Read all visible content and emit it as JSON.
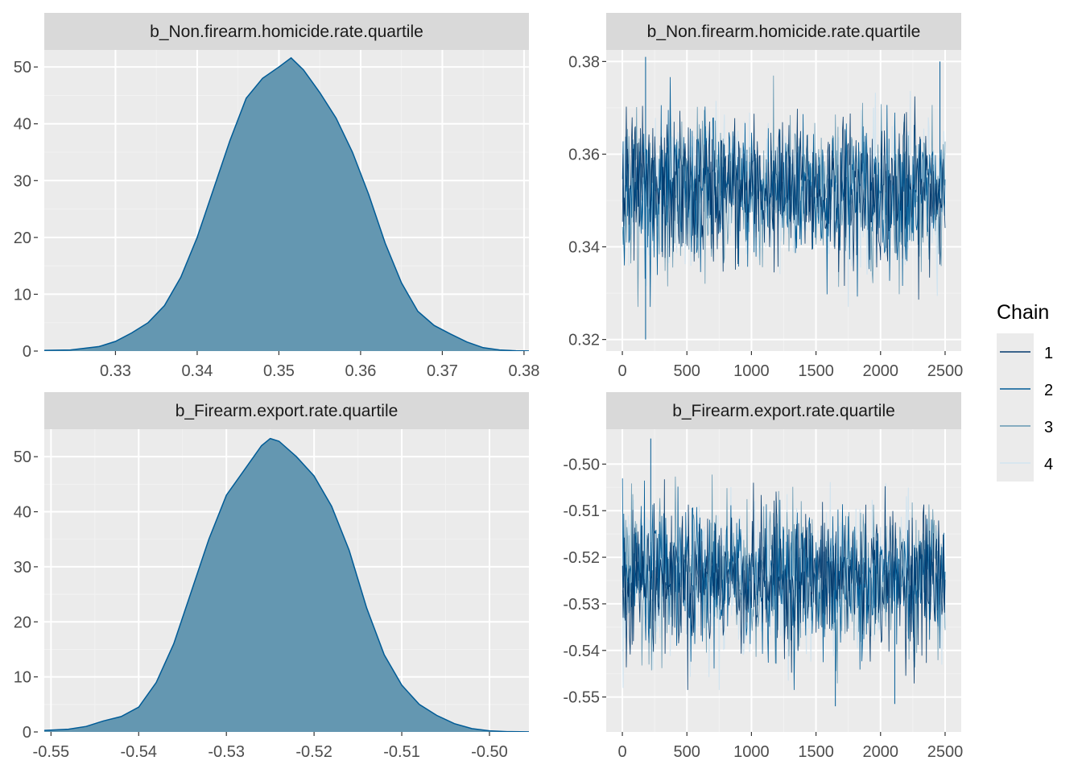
{
  "chart_data": [
    {
      "type": "area",
      "title": "b_Non.firearm.homicide.rate.quartile",
      "xlabel": "",
      "ylabel": "",
      "xlim": [
        0.3205,
        0.3806
      ],
      "ylim": [
        0,
        53
      ],
      "x_ticks": [
        0.33,
        0.34,
        0.35,
        0.36,
        0.37,
        0.38
      ],
      "x_tick_labels": [
        "0.33",
        "0.34",
        "0.35",
        "0.36",
        "0.37",
        "0.38"
      ],
      "y_ticks": [
        0,
        10,
        20,
        30,
        40,
        50
      ],
      "y_tick_labels": [
        "0",
        "10",
        "20",
        "30",
        "40",
        "50"
      ],
      "x": [
        0.3205,
        0.3245,
        0.328,
        0.33,
        0.332,
        0.334,
        0.336,
        0.338,
        0.34,
        0.342,
        0.344,
        0.346,
        0.348,
        0.35,
        0.3515,
        0.353,
        0.355,
        0.357,
        0.359,
        0.361,
        0.363,
        0.365,
        0.367,
        0.369,
        0.371,
        0.373,
        0.375,
        0.377,
        0.379,
        0.3806
      ],
      "y": [
        0.1,
        0.2,
        0.8,
        1.7,
        3.2,
        5.0,
        8.0,
        13.0,
        20.0,
        28.5,
        37.0,
        44.5,
        48.0,
        50.0,
        51.6,
        49.5,
        45.5,
        41.0,
        35.0,
        27.5,
        19.0,
        12.0,
        7.0,
        4.5,
        3.0,
        1.6,
        0.6,
        0.2,
        0.05,
        0.02
      ],
      "fill": "#6497b1",
      "line": "#005b96"
    },
    {
      "type": "line",
      "title": "b_Non.firearm.homicide.rate.quartile",
      "xlabel": "",
      "ylabel": "",
      "xlim": [
        -125,
        2625
      ],
      "ylim": [
        0.3175,
        0.3825
      ],
      "x_ticks": [
        0,
        500,
        1000,
        1500,
        2000,
        2500
      ],
      "x_tick_labels": [
        "0",
        "500",
        "1000",
        "1500",
        "2000",
        "2500"
      ],
      "y_ticks": [
        0.32,
        0.34,
        0.36,
        0.38
      ],
      "y_tick_labels": [
        "0.32",
        "0.34",
        "0.36",
        "0.38"
      ],
      "iterations": [
        1,
        2500
      ],
      "mean": 0.352,
      "sd": 0.0078,
      "extremes": [
        {
          "x": 180,
          "y": 0.32
        },
        {
          "x": 180,
          "y": 0.381
        },
        {
          "x": 2460,
          "y": 0.38
        }
      ],
      "series": [
        {
          "name": "1",
          "color": "#03396c"
        },
        {
          "name": "2",
          "color": "#005b96"
        },
        {
          "name": "3",
          "color": "#6497b1"
        },
        {
          "name": "4",
          "color": "#d2e4ef"
        }
      ]
    },
    {
      "type": "area",
      "title": "b_Firearm.export.rate.quartile",
      "xlabel": "",
      "ylabel": "",
      "xlim": [
        -0.5515,
        -0.4955
      ],
      "ylim": [
        0,
        55
      ],
      "x_ticks": [
        -0.55,
        -0.54,
        -0.53,
        -0.52,
        -0.51,
        -0.5
      ],
      "x_tick_labels": [
        "-0.55",
        "-0.54",
        "-0.53",
        "-0.52",
        "-0.51",
        "-0.50"
      ],
      "y_ticks": [
        0,
        10,
        20,
        30,
        40,
        50
      ],
      "y_tick_labels": [
        "0",
        "10",
        "20",
        "30",
        "40",
        "50"
      ],
      "x": [
        -0.5515,
        -0.548,
        -0.546,
        -0.544,
        -0.542,
        -0.54,
        -0.538,
        -0.536,
        -0.534,
        -0.532,
        -0.53,
        -0.528,
        -0.526,
        -0.525,
        -0.524,
        -0.522,
        -0.52,
        -0.518,
        -0.516,
        -0.514,
        -0.512,
        -0.51,
        -0.508,
        -0.506,
        -0.504,
        -0.502,
        -0.5,
        -0.498,
        -0.4955
      ],
      "y": [
        0.2,
        0.5,
        1.0,
        2.0,
        2.8,
        4.5,
        9.0,
        16.0,
        25.5,
        35.0,
        43.0,
        47.5,
        52.0,
        53.3,
        52.8,
        50.0,
        46.5,
        41.0,
        33.0,
        22.5,
        14.0,
        8.5,
        5.0,
        3.0,
        1.5,
        0.6,
        0.2,
        0.06,
        0.02
      ],
      "fill": "#6497b1",
      "line": "#005b96"
    },
    {
      "type": "line",
      "title": "b_Firearm.export.rate.quartile",
      "xlabel": "",
      "ylabel": "",
      "xlim": [
        -125,
        2625
      ],
      "ylim": [
        -0.5575,
        -0.4925
      ],
      "x_ticks": [
        0,
        500,
        1000,
        1500,
        2000,
        2500
      ],
      "x_tick_labels": [
        "0",
        "500",
        "1000",
        "1500",
        "2000",
        "2500"
      ],
      "y_ticks": [
        -0.55,
        -0.54,
        -0.53,
        -0.52,
        -0.51,
        -0.5
      ],
      "y_tick_labels": [
        "-0.55",
        "-0.54",
        "-0.53",
        "-0.52",
        "-0.51",
        "-0.50"
      ],
      "iterations": [
        1,
        2500
      ],
      "mean": -0.5245,
      "sd": 0.0075,
      "extremes": [
        {
          "x": 220,
          "y": -0.4945
        },
        {
          "x": 2110,
          "y": -0.5515
        },
        {
          "x": 1650,
          "y": -0.552
        }
      ],
      "series": [
        {
          "name": "1",
          "color": "#03396c"
        },
        {
          "name": "2",
          "color": "#005b96"
        },
        {
          "name": "3",
          "color": "#6497b1"
        },
        {
          "name": "4",
          "color": "#d2e4ef"
        }
      ]
    }
  ],
  "legend": {
    "title": "Chain",
    "items": [
      {
        "label": "1",
        "color": "#03396c"
      },
      {
        "label": "2",
        "color": "#005b96"
      },
      {
        "label": "3",
        "color": "#6497b1"
      },
      {
        "label": "4",
        "color": "#d2e4ef"
      }
    ]
  },
  "colors": {
    "panel_bg": "#ebebeb",
    "strip_bg": "#d9d9d9",
    "grid_major": "#ffffff",
    "grid_minor": "#f2f2f2",
    "tick_text": "#4d4d4d"
  }
}
